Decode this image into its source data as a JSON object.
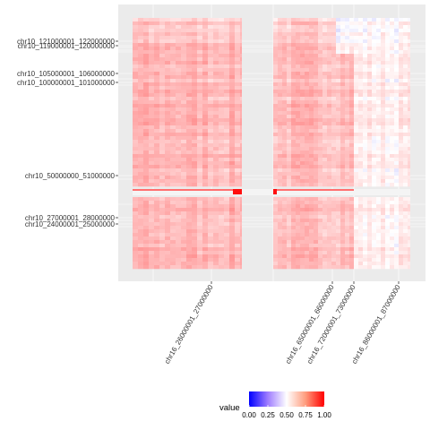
{
  "chart_data": {
    "type": "heatmap",
    "title": "",
    "xlabel": "",
    "ylabel": "",
    "x_labels": [
      "chr16_26000001_27000000",
      "chr16_65000001_66000000",
      "chr16_72000001_73000000",
      "chr16_86000001_87000000"
    ],
    "y_labels": [
      "chr10_121000001_122000000",
      "chr10_119000001_120000000",
      "chr10_105000001_106000000",
      "chr10_100000001_101000000",
      "chr10_50000000_51000000",
      "chr10_27000001_28000000",
      "chr10_24000001_25000000"
    ],
    "color_scale": {
      "low": "#0000ff",
      "mid": "#ffffff",
      "high": "#ff0000",
      "limits": [
        0,
        1
      ]
    },
    "values_note_blocks": [
      {
        "x_block": "left",
        "mean_value": 0.62
      },
      {
        "x_block": "right-inner",
        "mean_value": 0.6
      },
      {
        "x_block": "right-outer",
        "mean_value": 0.52
      }
    ],
    "legend": {
      "title": "value",
      "position": "bottom",
      "ticks": [
        "0.00",
        "0.25",
        "0.50",
        "0.75",
        "1.00"
      ]
    },
    "grid": true
  }
}
